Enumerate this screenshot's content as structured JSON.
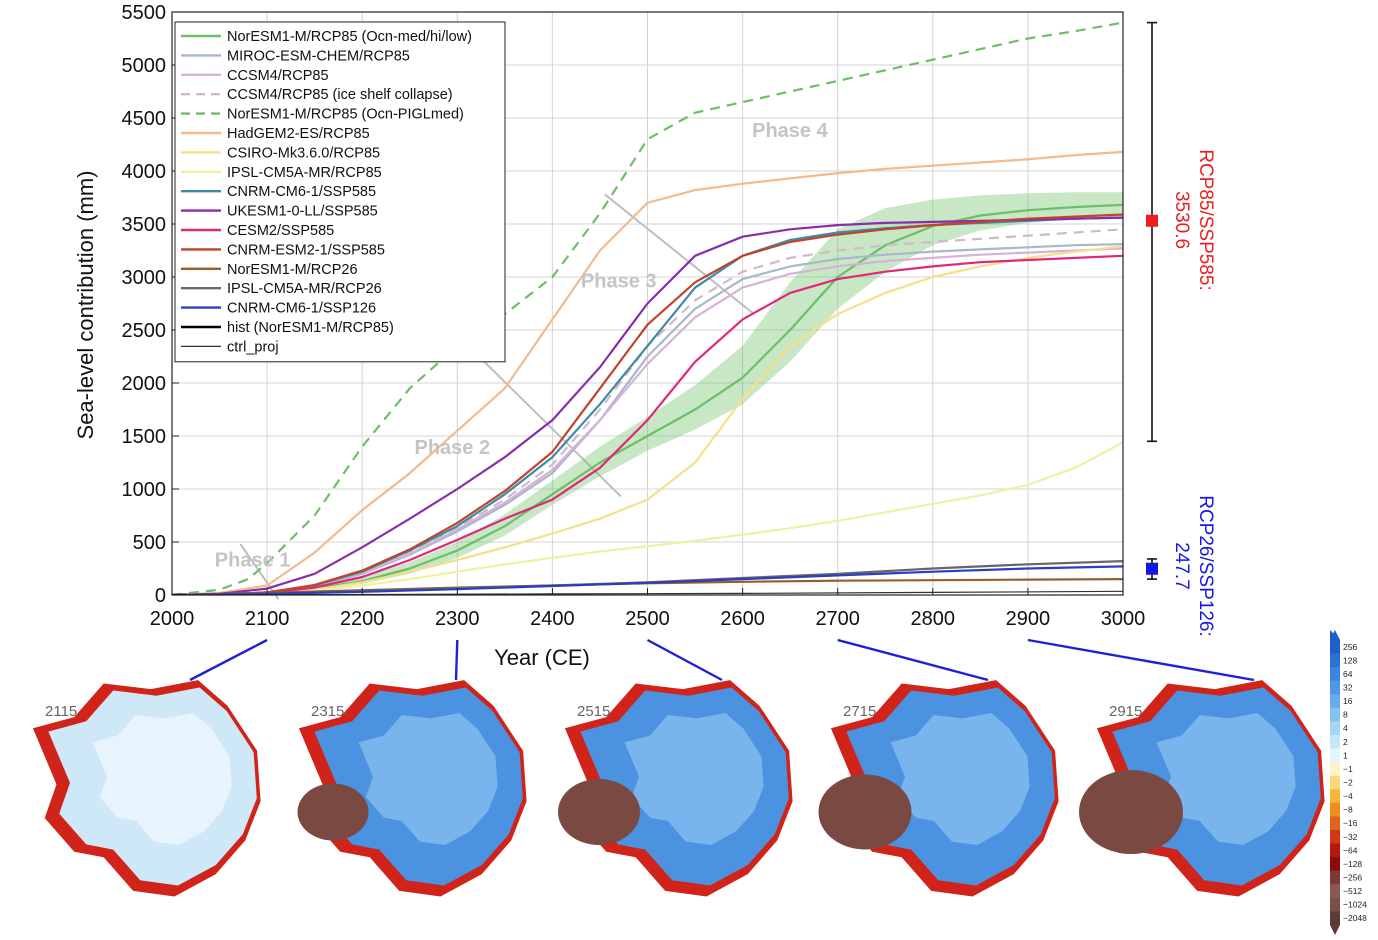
{
  "chart_data": {
    "type": "line",
    "xlabel": "Year (CE)",
    "ylabel": "Sea-level contribution (mm)",
    "xlim": [
      2000,
      3000
    ],
    "ylim": [
      0,
      5500
    ],
    "xticks": [
      2000,
      2100,
      2200,
      2300,
      2400,
      2500,
      2600,
      2700,
      2800,
      2900,
      3000
    ],
    "yticks": [
      0,
      500,
      1000,
      1500,
      2000,
      2500,
      3000,
      3500,
      4000,
      4500,
      5000,
      5500
    ],
    "grid": true,
    "legend_position": "top-left",
    "series": [
      {
        "name": "NorESM1-M/RCP85 (Ocn-med/hi/low)",
        "color": "#6cbf66",
        "dash": "solid",
        "x": [
          2000,
          2050,
          2100,
          2150,
          2200,
          2250,
          2300,
          2350,
          2400,
          2450,
          2500,
          2550,
          2600,
          2650,
          2700,
          2750,
          2800,
          2850,
          2900,
          2950,
          3000
        ],
        "y": [
          0,
          5,
          20,
          60,
          130,
          250,
          420,
          650,
          950,
          1250,
          1500,
          1750,
          2050,
          2500,
          3000,
          3300,
          3480,
          3580,
          3630,
          3660,
          3680
        ],
        "band_low": [
          0,
          5,
          15,
          45,
          105,
          200,
          350,
          560,
          850,
          1120,
          1360,
          1560,
          1800,
          2200,
          2700,
          3050,
          3300,
          3440,
          3510,
          3550,
          3570
        ],
        "band_high": [
          0,
          5,
          25,
          80,
          165,
          310,
          500,
          760,
          1080,
          1400,
          1680,
          1980,
          2350,
          2950,
          3450,
          3650,
          3730,
          3770,
          3790,
          3800,
          3800
        ]
      },
      {
        "name": "MIROC-ESM-CHEM/RCP85",
        "color": "#a9b7cc",
        "dash": "solid",
        "x": [
          2000,
          2050,
          2100,
          2150,
          2200,
          2250,
          2300,
          2350,
          2400,
          2450,
          2500,
          2550,
          2600,
          2650,
          2700,
          2750,
          2800,
          2850,
          2900,
          2950,
          3000
        ],
        "y": [
          0,
          5,
          25,
          80,
          200,
          380,
          600,
          850,
          1150,
          1650,
          2250,
          2700,
          2980,
          3100,
          3170,
          3210,
          3240,
          3260,
          3280,
          3300,
          3310
        ]
      },
      {
        "name": "CCSM4/RCP85",
        "color": "#d6b3d6",
        "dash": "solid",
        "x": [
          2000,
          2050,
          2100,
          2150,
          2200,
          2250,
          2300,
          2350,
          2400,
          2450,
          2500,
          2550,
          2600,
          2650,
          2700,
          2750,
          2800,
          2850,
          2900,
          2950,
          3000
        ],
        "y": [
          0,
          5,
          25,
          85,
          210,
          390,
          620,
          870,
          1180,
          1650,
          2180,
          2620,
          2900,
          3030,
          3100,
          3150,
          3180,
          3210,
          3230,
          3250,
          3270
        ]
      },
      {
        "name": "CCSM4/RCP85 (ice shelf collapse)",
        "color": "#d2b8c8",
        "dash": "dashed",
        "x": [
          2000,
          2050,
          2100,
          2150,
          2200,
          2250,
          2300,
          2350,
          2400,
          2450,
          2500,
          2550,
          2600,
          2650,
          2700,
          2750,
          2800,
          2850,
          2900,
          2950,
          3000
        ],
        "y": [
          0,
          5,
          25,
          85,
          210,
          400,
          640,
          900,
          1230,
          1750,
          2350,
          2780,
          3050,
          3180,
          3250,
          3300,
          3330,
          3360,
          3390,
          3420,
          3450
        ]
      },
      {
        "name": "NorESM1-M/RCP85 (Ocn-PIGLmed)",
        "color": "#6cbf66",
        "dash": "dashed",
        "x": [
          2000,
          2050,
          2080,
          2100,
          2150,
          2200,
          2250,
          2300,
          2350,
          2400,
          2450,
          2500,
          2550,
          2600,
          2650,
          2700,
          2750,
          2800,
          2850,
          2900,
          2950,
          3000
        ],
        "y": [
          0,
          50,
          150,
          300,
          750,
          1400,
          1950,
          2350,
          2650,
          3000,
          3600,
          4300,
          4550,
          4650,
          4750,
          4850,
          4950,
          5050,
          5150,
          5250,
          5320,
          5400
        ]
      },
      {
        "name": "HadGEM2-ES/RCP85",
        "color": "#f5b98a",
        "dash": "solid",
        "x": [
          2000,
          2050,
          2100,
          2150,
          2200,
          2250,
          2300,
          2350,
          2400,
          2450,
          2500,
          2550,
          2600,
          2650,
          2700,
          2750,
          2800,
          2850,
          2900,
          2950,
          3000
        ],
        "y": [
          0,
          20,
          90,
          400,
          800,
          1150,
          1550,
          1950,
          2600,
          3250,
          3700,
          3820,
          3880,
          3930,
          3980,
          4020,
          4050,
          4080,
          4110,
          4150,
          4180
        ]
      },
      {
        "name": "CSIRO-Mk3.6.0/RCP85",
        "color": "#f5e08a",
        "dash": "solid",
        "x": [
          2000,
          2050,
          2100,
          2150,
          2200,
          2250,
          2300,
          2350,
          2400,
          2450,
          2500,
          2550,
          2600,
          2650,
          2700,
          2750,
          2800,
          2850,
          2900,
          2950,
          3000
        ],
        "y": [
          0,
          5,
          15,
          50,
          120,
          220,
          330,
          450,
          580,
          720,
          900,
          1250,
          1850,
          2350,
          2650,
          2850,
          3000,
          3100,
          3180,
          3240,
          3290
        ]
      },
      {
        "name": "IPSL-CM5A-MR/RCP85",
        "color": "#f0f0a0",
        "dash": "solid",
        "x": [
          2000,
          2050,
          2100,
          2150,
          2200,
          2250,
          2300,
          2350,
          2400,
          2450,
          2500,
          2550,
          2600,
          2650,
          2700,
          2750,
          2800,
          2850,
          2900,
          2950,
          3000
        ],
        "y": [
          0,
          3,
          10,
          40,
          90,
          150,
          220,
          290,
          350,
          410,
          460,
          510,
          570,
          630,
          700,
          780,
          860,
          940,
          1040,
          1200,
          1440
        ]
      },
      {
        "name": "CNRM-CM6-1/SSP585",
        "color": "#3d8aaa",
        "dash": "solid",
        "x": [
          2000,
          2050,
          2100,
          2150,
          2200,
          2250,
          2300,
          2350,
          2400,
          2450,
          2500,
          2550,
          2600,
          2650,
          2700,
          2750,
          2800,
          2850,
          2900,
          2950,
          3000
        ],
        "y": [
          0,
          5,
          25,
          90,
          220,
          420,
          650,
          950,
          1300,
          1800,
          2350,
          2900,
          3200,
          3350,
          3420,
          3460,
          3490,
          3510,
          3530,
          3550,
          3560
        ]
      },
      {
        "name": "UKESM1-0-LL/SSP585",
        "color": "#8b2cae",
        "dash": "solid",
        "x": [
          2000,
          2050,
          2100,
          2150,
          2200,
          2250,
          2300,
          2350,
          2400,
          2450,
          2500,
          2550,
          2600,
          2650,
          2700,
          2750,
          2800,
          2850,
          2900,
          2950,
          3000
        ],
        "y": [
          0,
          10,
          60,
          200,
          450,
          720,
          1000,
          1300,
          1650,
          2150,
          2750,
          3200,
          3380,
          3450,
          3490,
          3510,
          3520,
          3530,
          3540,
          3550,
          3560
        ]
      },
      {
        "name": "CESM2/SSP585",
        "color": "#e0287a",
        "dash": "solid",
        "x": [
          2000,
          2050,
          2100,
          2150,
          2200,
          2250,
          2300,
          2350,
          2400,
          2450,
          2500,
          2550,
          2600,
          2650,
          2700,
          2750,
          2800,
          2850,
          2900,
          2950,
          3000
        ],
        "y": [
          0,
          5,
          20,
          70,
          170,
          330,
          520,
          720,
          900,
          1200,
          1650,
          2200,
          2600,
          2850,
          2980,
          3050,
          3100,
          3140,
          3160,
          3180,
          3200
        ]
      },
      {
        "name": "CNRM-ESM2-1/SSP585",
        "color": "#c0432a",
        "dash": "solid",
        "x": [
          2000,
          2050,
          2100,
          2150,
          2200,
          2250,
          2300,
          2350,
          2400,
          2450,
          2500,
          2550,
          2600,
          2650,
          2700,
          2750,
          2800,
          2850,
          2900,
          2950,
          3000
        ],
        "y": [
          0,
          5,
          25,
          95,
          230,
          430,
          680,
          980,
          1350,
          1950,
          2550,
          2950,
          3200,
          3330,
          3400,
          3450,
          3490,
          3520,
          3550,
          3570,
          3590
        ]
      },
      {
        "name": "NorESM1-M/RCP26",
        "color": "#9c5a26",
        "dash": "solid",
        "x": [
          2000,
          2100,
          2200,
          2300,
          2400,
          2500,
          2600,
          2700,
          2800,
          2900,
          3000
        ],
        "y": [
          0,
          20,
          45,
          70,
          90,
          110,
          125,
          135,
          140,
          145,
          150
        ]
      },
      {
        "name": "IPSL-CM5A-MR/RCP26",
        "color": "#666666",
        "dash": "solid",
        "x": [
          2000,
          2100,
          2200,
          2300,
          2400,
          2500,
          2600,
          2700,
          2800,
          2900,
          3000
        ],
        "y": [
          0,
          15,
          40,
          65,
          90,
          120,
          160,
          200,
          250,
          290,
          320
        ]
      },
      {
        "name": "CNRM-CM6-1/SSP126",
        "color": "#2a3fbf",
        "dash": "solid",
        "x": [
          2000,
          2100,
          2200,
          2300,
          2400,
          2500,
          2600,
          2700,
          2800,
          2900,
          3000
        ],
        "y": [
          0,
          10,
          30,
          55,
          85,
          115,
          150,
          185,
          220,
          250,
          270
        ]
      },
      {
        "name": "hist (NorESM1-M/RCP85)",
        "color": "#000000",
        "dash": "solid",
        "x": [
          2000,
          2005,
          2010,
          2015
        ],
        "y": [
          0,
          1,
          2,
          4
        ]
      },
      {
        "name": "ctrl_proj",
        "color": "#333333",
        "dash": "thin",
        "x": [
          2000,
          2200,
          2400,
          2600,
          2800,
          3000
        ],
        "y": [
          0,
          5,
          10,
          15,
          25,
          35
        ]
      }
    ],
    "annotations": [
      {
        "text": "Phase 1",
        "x": 2045,
        "y": 270
      },
      {
        "text": "Phase 2",
        "x": 2255,
        "y": 1330
      },
      {
        "text": "Phase 3",
        "x": 2430,
        "y": 2900
      },
      {
        "text": "Phase 4",
        "x": 2610,
        "y": 4320
      }
    ],
    "phase_lines": [
      {
        "x1": 2072,
        "y1": 480,
        "x2": 2112,
        "y2": -40
      },
      {
        "x1": 2255,
        "y1": 2850,
        "x2": 2472,
        "y2": 930
      },
      {
        "x1": 2455,
        "y1": 3780,
        "x2": 2612,
        "y2": 2650
      }
    ],
    "range_bars": [
      {
        "label": "RCP85/SSP585:",
        "value": "3530.6",
        "mean": 3530.6,
        "low": 1450,
        "high": 5400,
        "color": "#ee1c1c",
        "text_color": "#ee1c1c"
      },
      {
        "label": "RCP26/SSP126:",
        "value": "247.7",
        "mean": 247.7,
        "low": 150,
        "high": 340,
        "color": "#1515e6",
        "text_color": "#1515e6"
      }
    ],
    "maps": [
      {
        "year": "2115",
        "at": 2100
      },
      {
        "year": "2315",
        "at": 2300
      },
      {
        "year": "2515",
        "at": 2500
      },
      {
        "year": "2715",
        "at": 2700
      },
      {
        "year": "2915",
        "at": 2900
      }
    ],
    "colorbar": {
      "labels": [
        "256",
        "128",
        "64",
        "32",
        "16",
        "8",
        "4",
        "2",
        "1",
        "−1",
        "−2",
        "−4",
        "−8",
        "−16",
        "−32",
        "−64",
        "−128",
        "−256",
        "−512",
        "−1024",
        "−2048"
      ],
      "colors": [
        "#1f5fc8",
        "#2a72d4",
        "#3a85de",
        "#4f98e6",
        "#68abed",
        "#86c0f2",
        "#a6d4f6",
        "#c6e6fa",
        "#e6f4fd",
        "#fdf3c8",
        "#fbd97a",
        "#f6b73a",
        "#f08f1e",
        "#e2641a",
        "#cf3a14",
        "#b3170e",
        "#8e0a0a",
        "#7a3a36",
        "#8a5a52",
        "#7a5048",
        "#5e3c36"
      ]
    }
  }
}
